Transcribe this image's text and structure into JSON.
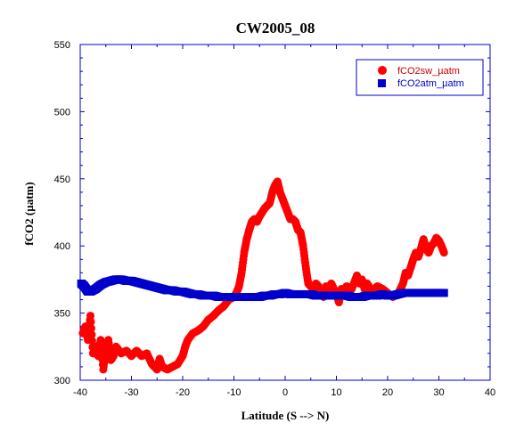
{
  "chart_data": {
    "type": "scatter",
    "title": "CW2005_08",
    "xlabel": "Latitude (S --> N)",
    "ylabel": "fCO2 (µatm)",
    "xlim": [
      -40,
      40
    ],
    "ylim": [
      300,
      550
    ],
    "xticks": [
      -40,
      -30,
      -20,
      -10,
      0,
      10,
      20,
      30,
      40
    ],
    "yticks": [
      300,
      350,
      400,
      450,
      500,
      550
    ],
    "legend_position": "top-right",
    "grid": false,
    "series": [
      {
        "name": "fCO2sw_µatm",
        "color": "#ff0000",
        "marker": "circle",
        "x": [
          -39.5,
          -39,
          -38.5,
          -38,
          -37.5,
          -37,
          -36.5,
          -36,
          -35.5,
          -35,
          -34.5,
          -34,
          -33.5,
          -33,
          -32,
          -31,
          -30,
          -29,
          -28,
          -27,
          -26,
          -25,
          -24.5,
          -24,
          -23,
          -22,
          -21,
          -20,
          -19.5,
          -19,
          -18,
          -17,
          -16,
          -15,
          -14,
          -13,
          -12,
          -11,
          -10,
          -9.5,
          -9,
          -8.5,
          -8,
          -7.5,
          -7,
          -6.5,
          -6,
          -5.5,
          -5,
          -4.5,
          -4,
          -3.5,
          -3,
          -2.5,
          -2,
          -1.5,
          -1,
          -0.5,
          0,
          0.5,
          1,
          1.5,
          2,
          2.5,
          3,
          3.5,
          4,
          4.5,
          5,
          5.5,
          6,
          6.5,
          7,
          7.5,
          8,
          8.5,
          9,
          9.5,
          10,
          10.5,
          11,
          11.5,
          12,
          13,
          14,
          14.5,
          15,
          15.5,
          16,
          17,
          18,
          19,
          20,
          21,
          22,
          22.5,
          23,
          23.5,
          24,
          24.5,
          25,
          25.5,
          26,
          26.5,
          27,
          27.5,
          28,
          28.5,
          29,
          29.5,
          30,
          30.5,
          31
        ],
        "y": [
          335,
          340,
          330,
          348,
          320,
          325,
          318,
          330,
          308,
          322,
          330,
          315,
          318,
          325,
          320,
          322,
          318,
          322,
          318,
          320,
          312,
          308,
          316,
          310,
          308,
          310,
          312,
          318,
          325,
          330,
          335,
          337,
          340,
          345,
          348,
          352,
          355,
          360,
          362,
          365,
          370,
          380,
          395,
          405,
          412,
          418,
          420,
          418,
          422,
          425,
          428,
          430,
          432,
          440,
          445,
          448,
          440,
          435,
          430,
          425,
          420,
          420,
          418,
          412,
          410,
          400,
          385,
          372,
          370,
          368,
          372,
          370,
          365,
          362,
          370,
          366,
          372,
          368,
          364,
          358,
          368,
          366,
          370,
          368,
          378,
          372,
          375,
          368,
          372,
          366,
          370,
          368,
          365,
          362,
          364,
          368,
          372,
          380,
          378,
          384,
          390,
          395,
          392,
          398,
          405,
          398,
          395,
          400,
          402,
          406,
          404,
          400,
          395
        ]
      },
      {
        "name": "fCO2atm_µatm",
        "color": "#0000cc",
        "marker": "square",
        "x": [
          -39.8,
          -39.2,
          -38.5,
          -38,
          -37,
          -36,
          -35,
          -34,
          -33,
          -32,
          -31,
          -30,
          -29,
          -28,
          -27,
          -26,
          -25,
          -24,
          -23,
          -22,
          -21,
          -20,
          -19,
          -18,
          -17,
          -16,
          -15,
          -14,
          -13,
          -12,
          -11,
          -10,
          -9,
          -8,
          -7,
          -6,
          -5,
          -4,
          -3,
          -2,
          -1,
          0,
          1,
          2,
          3,
          4,
          5,
          6,
          7,
          8,
          9,
          10,
          11,
          12,
          13,
          14,
          15,
          16,
          17,
          18,
          19,
          20,
          21,
          22,
          23,
          24,
          25,
          26,
          27,
          28,
          29,
          30,
          31
        ],
        "y": [
          372,
          370,
          366,
          366,
          368,
          371,
          373,
          374,
          375,
          375,
          374,
          374,
          373,
          372,
          371,
          370,
          369,
          368,
          367,
          367,
          366,
          366,
          365,
          364,
          364,
          363,
          363,
          363,
          362,
          362,
          362,
          362,
          362,
          362,
          362,
          362,
          362,
          363,
          363,
          364,
          364,
          365,
          364,
          364,
          364,
          364,
          364,
          363,
          363,
          363,
          363,
          363,
          363,
          363,
          362,
          362,
          362,
          363,
          363,
          363,
          364,
          363,
          363,
          364,
          365,
          365,
          365,
          365,
          365,
          365,
          365,
          365,
          365
        ]
      }
    ]
  }
}
